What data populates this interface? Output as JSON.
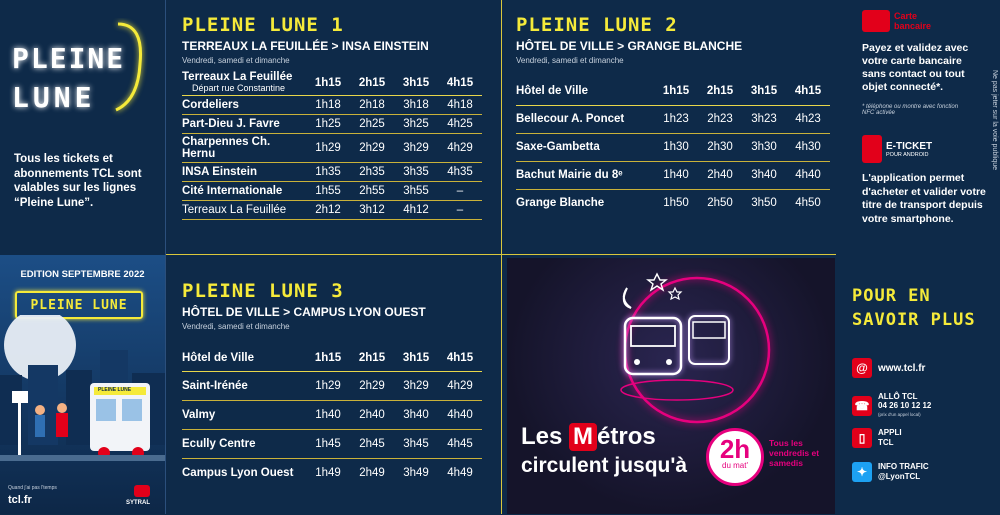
{
  "brand": {
    "logo_line1": "PLEINE",
    "logo_line2": "LUNE",
    "intro": "Tous les tickets et abonnements TCL sont valables sur les lignes “Pleine Lune”."
  },
  "edition": {
    "label": "EDITION SEPTEMBRE 2022",
    "sign": "PLEINE LUNE",
    "bus_sign": "PLEINE LUNE",
    "footer_small": "Quand j'ai pas l'temps",
    "site": "tcl.fr",
    "sytral": "SYTRAL"
  },
  "line1": {
    "title": "PLEINE LUNE 1",
    "route": "TERREAUX LA FEUILLÉE > INSA EINSTEIN",
    "days": "Vendredi, samedi et dimanche",
    "first_stop": "Terreaux La Feuillée",
    "first_stop_sub": "Départ rue Constantine",
    "headers": [
      "1h15",
      "2h15",
      "3h15",
      "4h15"
    ],
    "rows": [
      {
        "stop": "Cordeliers",
        "times": [
          "1h18",
          "2h18",
          "3h18",
          "4h18"
        ]
      },
      {
        "stop": "Part-Dieu J. Favre",
        "times": [
          "1h25",
          "2h25",
          "3h25",
          "4h25"
        ]
      },
      {
        "stop": "Charpennes Ch. Hernu",
        "times": [
          "1h29",
          "2h29",
          "3h29",
          "4h29"
        ]
      },
      {
        "stop": "INSA Einstein",
        "times": [
          "1h35",
          "2h35",
          "3h35",
          "4h35"
        ]
      },
      {
        "stop": "Cité Internationale",
        "times": [
          "1h55",
          "2h55",
          "3h55",
          "–"
        ]
      },
      {
        "stop": "Terreaux La Feuillée",
        "times": [
          "2h12",
          "3h12",
          "4h12",
          "–"
        ]
      }
    ]
  },
  "line2": {
    "title": "PLEINE LUNE 2",
    "route": "HÔTEL DE VILLE > GRANGE BLANCHE",
    "days": "Vendredi, samedi et dimanche",
    "first_stop": "Hôtel de Ville",
    "headers": [
      "1h15",
      "2h15",
      "3h15",
      "4h15"
    ],
    "rows": [
      {
        "stop": "Bellecour A. Poncet",
        "times": [
          "1h23",
          "2h23",
          "3h23",
          "4h23"
        ]
      },
      {
        "stop": "Saxe-Gambetta",
        "times": [
          "1h30",
          "2h30",
          "3h30",
          "4h30"
        ]
      },
      {
        "stop": "Bachut Mairie du 8ᵉ",
        "times": [
          "1h40",
          "2h40",
          "3h40",
          "4h40"
        ]
      },
      {
        "stop": "Grange Blanche",
        "times": [
          "1h50",
          "2h50",
          "3h50",
          "4h50"
        ]
      }
    ]
  },
  "line3": {
    "title": "PLEINE LUNE 3",
    "route": "HÔTEL DE VILLE > CAMPUS LYON OUEST",
    "days": "Vendredi, samedi et dimanche",
    "first_stop": "Hôtel de Ville",
    "headers": [
      "1h15",
      "2h15",
      "3h15",
      "4h15"
    ],
    "rows": [
      {
        "stop": "Saint-Irénée",
        "times": [
          "1h29",
          "2h29",
          "3h29",
          "4h29"
        ]
      },
      {
        "stop": "Valmy",
        "times": [
          "1h40",
          "2h40",
          "3h40",
          "4h40"
        ]
      },
      {
        "stop": "Ecully Centre",
        "times": [
          "1h45",
          "2h45",
          "3h45",
          "4h45"
        ]
      },
      {
        "stop": "Campus Lyon Ouest",
        "times": [
          "1h49",
          "2h49",
          "3h49",
          "4h49"
        ]
      }
    ]
  },
  "promo": {
    "les": "Les",
    "m": "M",
    "etros": "étros",
    "line2": "circulent jusqu'à",
    "hour": "2h",
    "hour_sub": "du mat'",
    "side": "Tous les vendredis et samedis"
  },
  "payment": {
    "card_label": "Carte bancaire",
    "card_text": "Payez et validez avec votre carte bancaire sans contact ou tout objet connecté*.",
    "card_note": "* téléphone ou montre avec fonction NFC activée",
    "eticket_label": "E-TICKET",
    "eticket_sub": "POUR ANDROID",
    "eticket_text": "L'application permet d'acheter et valider votre titre de transport depuis votre smartphone.",
    "side_note": "Ne pas jeter sur la voie publique"
  },
  "info": {
    "title_line1": "POUR EN",
    "title_line2": "SAVOIR PLUS",
    "web": "www.tcl.fr",
    "allo_label": "ALLÔ TCL",
    "allo_number": "04 26 10 12 12",
    "allo_note": "(prix d'un appel local)",
    "appli_label": "APPLI",
    "appli_sub": "TCL",
    "twitter_label": "INFO TRAFIC",
    "twitter_handle": "@LyonTCL"
  },
  "colors": {
    "background": "#0e2a49",
    "neon_yellow": "#f5ea3a",
    "tcl_red": "#e2001a",
    "promo_bg": "#1a1a2e",
    "pink": "#e6007e"
  }
}
